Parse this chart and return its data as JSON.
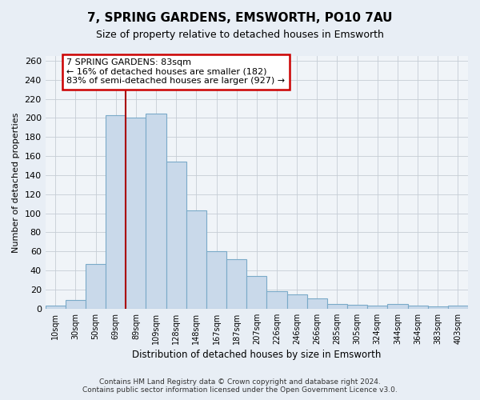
{
  "title": "7, SPRING GARDENS, EMSWORTH, PO10 7AU",
  "subtitle": "Size of property relative to detached houses in Emsworth",
  "xlabel": "Distribution of detached houses by size in Emsworth",
  "ylabel": "Number of detached properties",
  "categories": [
    "10sqm",
    "30sqm",
    "50sqm",
    "69sqm",
    "89sqm",
    "109sqm",
    "128sqm",
    "148sqm",
    "167sqm",
    "187sqm",
    "207sqm",
    "226sqm",
    "246sqm",
    "266sqm",
    "285sqm",
    "305sqm",
    "324sqm",
    "344sqm",
    "364sqm",
    "383sqm",
    "403sqm"
  ],
  "values": [
    3,
    9,
    47,
    203,
    200,
    205,
    154,
    103,
    60,
    52,
    34,
    18,
    15,
    11,
    5,
    4,
    3,
    5,
    3,
    2,
    3
  ],
  "bar_color": "#c9d9ea",
  "bar_edge_color": "#7aaac8",
  "vline_color": "#aa0000",
  "annotation_title": "7 SPRING GARDENS: 83sqm",
  "annotation_line1": "← 16% of detached houses are smaller (182)",
  "annotation_line2": "83% of semi-detached houses are larger (927) →",
  "annotation_box_color": "#cc0000",
  "annotation_bg": "#ffffff",
  "ylim": [
    0,
    265
  ],
  "yticks": [
    0,
    20,
    40,
    60,
    80,
    100,
    120,
    140,
    160,
    180,
    200,
    220,
    240,
    260
  ],
  "footer_line1": "Contains HM Land Registry data © Crown copyright and database right 2024.",
  "footer_line2": "Contains public sector information licensed under the Open Government Licence v3.0.",
  "bg_color": "#e8eef5",
  "plot_bg_color": "#f0f4f8",
  "grid_color": "#c5cdd5"
}
